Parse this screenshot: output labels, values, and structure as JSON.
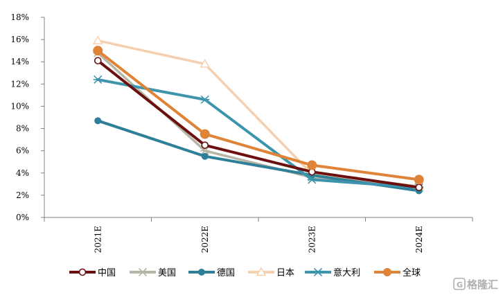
{
  "chart_data": {
    "type": "line",
    "categories": [
      "2021E",
      "2022E",
      "2023E",
      "2024E"
    ],
    "y_ticks": [
      "0%",
      "2%",
      "4%",
      "6%",
      "8%",
      "10%",
      "12%",
      "14%",
      "16%",
      "18%"
    ],
    "ylim": [
      0,
      18
    ],
    "grid": false,
    "legend_position": "bottom",
    "series": [
      {
        "name": "美国",
        "values": [
          14.8,
          6.0,
          3.6,
          2.7
        ],
        "color": "#b7b6a6",
        "marker": "asterisk"
      },
      {
        "name": "日本",
        "values": [
          15.9,
          13.8,
          3.9,
          2.8
        ],
        "color": "#f6cfae",
        "marker": "triangle-open"
      },
      {
        "name": "德国",
        "values": [
          8.7,
          5.5,
          3.8,
          2.4
        ],
        "color": "#2e7f98",
        "marker": "circle-filled"
      },
      {
        "name": "意大利",
        "values": [
          12.4,
          10.6,
          3.4,
          2.7
        ],
        "color": "#3c95ad",
        "marker": "asterisk"
      },
      {
        "name": "中国",
        "values": [
          14.1,
          6.5,
          4.1,
          2.7
        ],
        "color": "#6b0f0f",
        "marker": "circle-open"
      },
      {
        "name": "全球",
        "values": [
          15.0,
          7.5,
          4.7,
          3.4
        ],
        "color": "#df8338",
        "marker": "circle-filled"
      }
    ],
    "legend_order": [
      "中国",
      "美国",
      "德国",
      "日本",
      "意大利",
      "全球"
    ]
  },
  "watermark": {
    "text": "格隆汇",
    "icon": "g-logo-icon"
  }
}
